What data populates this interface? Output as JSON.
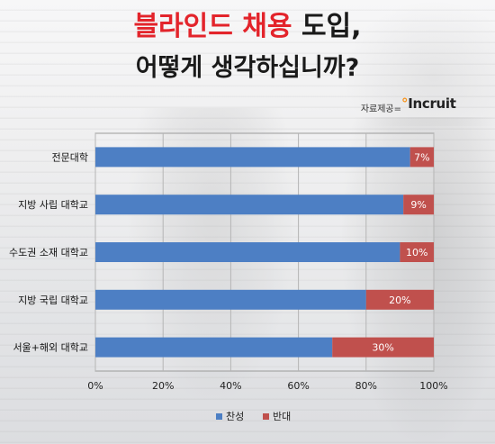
{
  "header": {
    "title_red": "블라인드 채용",
    "title_black": "도입,",
    "subtitle": "어떻게 생각하십니까?",
    "source_label": "자료제공=",
    "logo_text": "Incruit"
  },
  "colors": {
    "favor": "#4d7fc4",
    "oppose": "#c0504d",
    "title_accent": "#e3242b"
  },
  "chart_data": {
    "type": "bar",
    "orientation": "horizontal",
    "stacked": true,
    "categories": [
      "전문대학",
      "지방 사립 대학교",
      "수도권 소재 대학교",
      "지방 국립 대학교",
      "서울+해외 대학교"
    ],
    "series": [
      {
        "name": "찬성",
        "values": [
          93,
          91,
          90,
          80,
          70
        ],
        "color": "#4d7fc4"
      },
      {
        "name": "반대",
        "values": [
          7,
          9,
          10,
          20,
          30
        ],
        "color": "#c0504d"
      }
    ],
    "data_labels": [
      "7%",
      "9%",
      "10%",
      "20%",
      "30%"
    ],
    "xlim": [
      0,
      100
    ],
    "xticks": [
      "0%",
      "20%",
      "40%",
      "60%",
      "80%",
      "100%"
    ],
    "legend_position": "bottom",
    "grid": true
  }
}
